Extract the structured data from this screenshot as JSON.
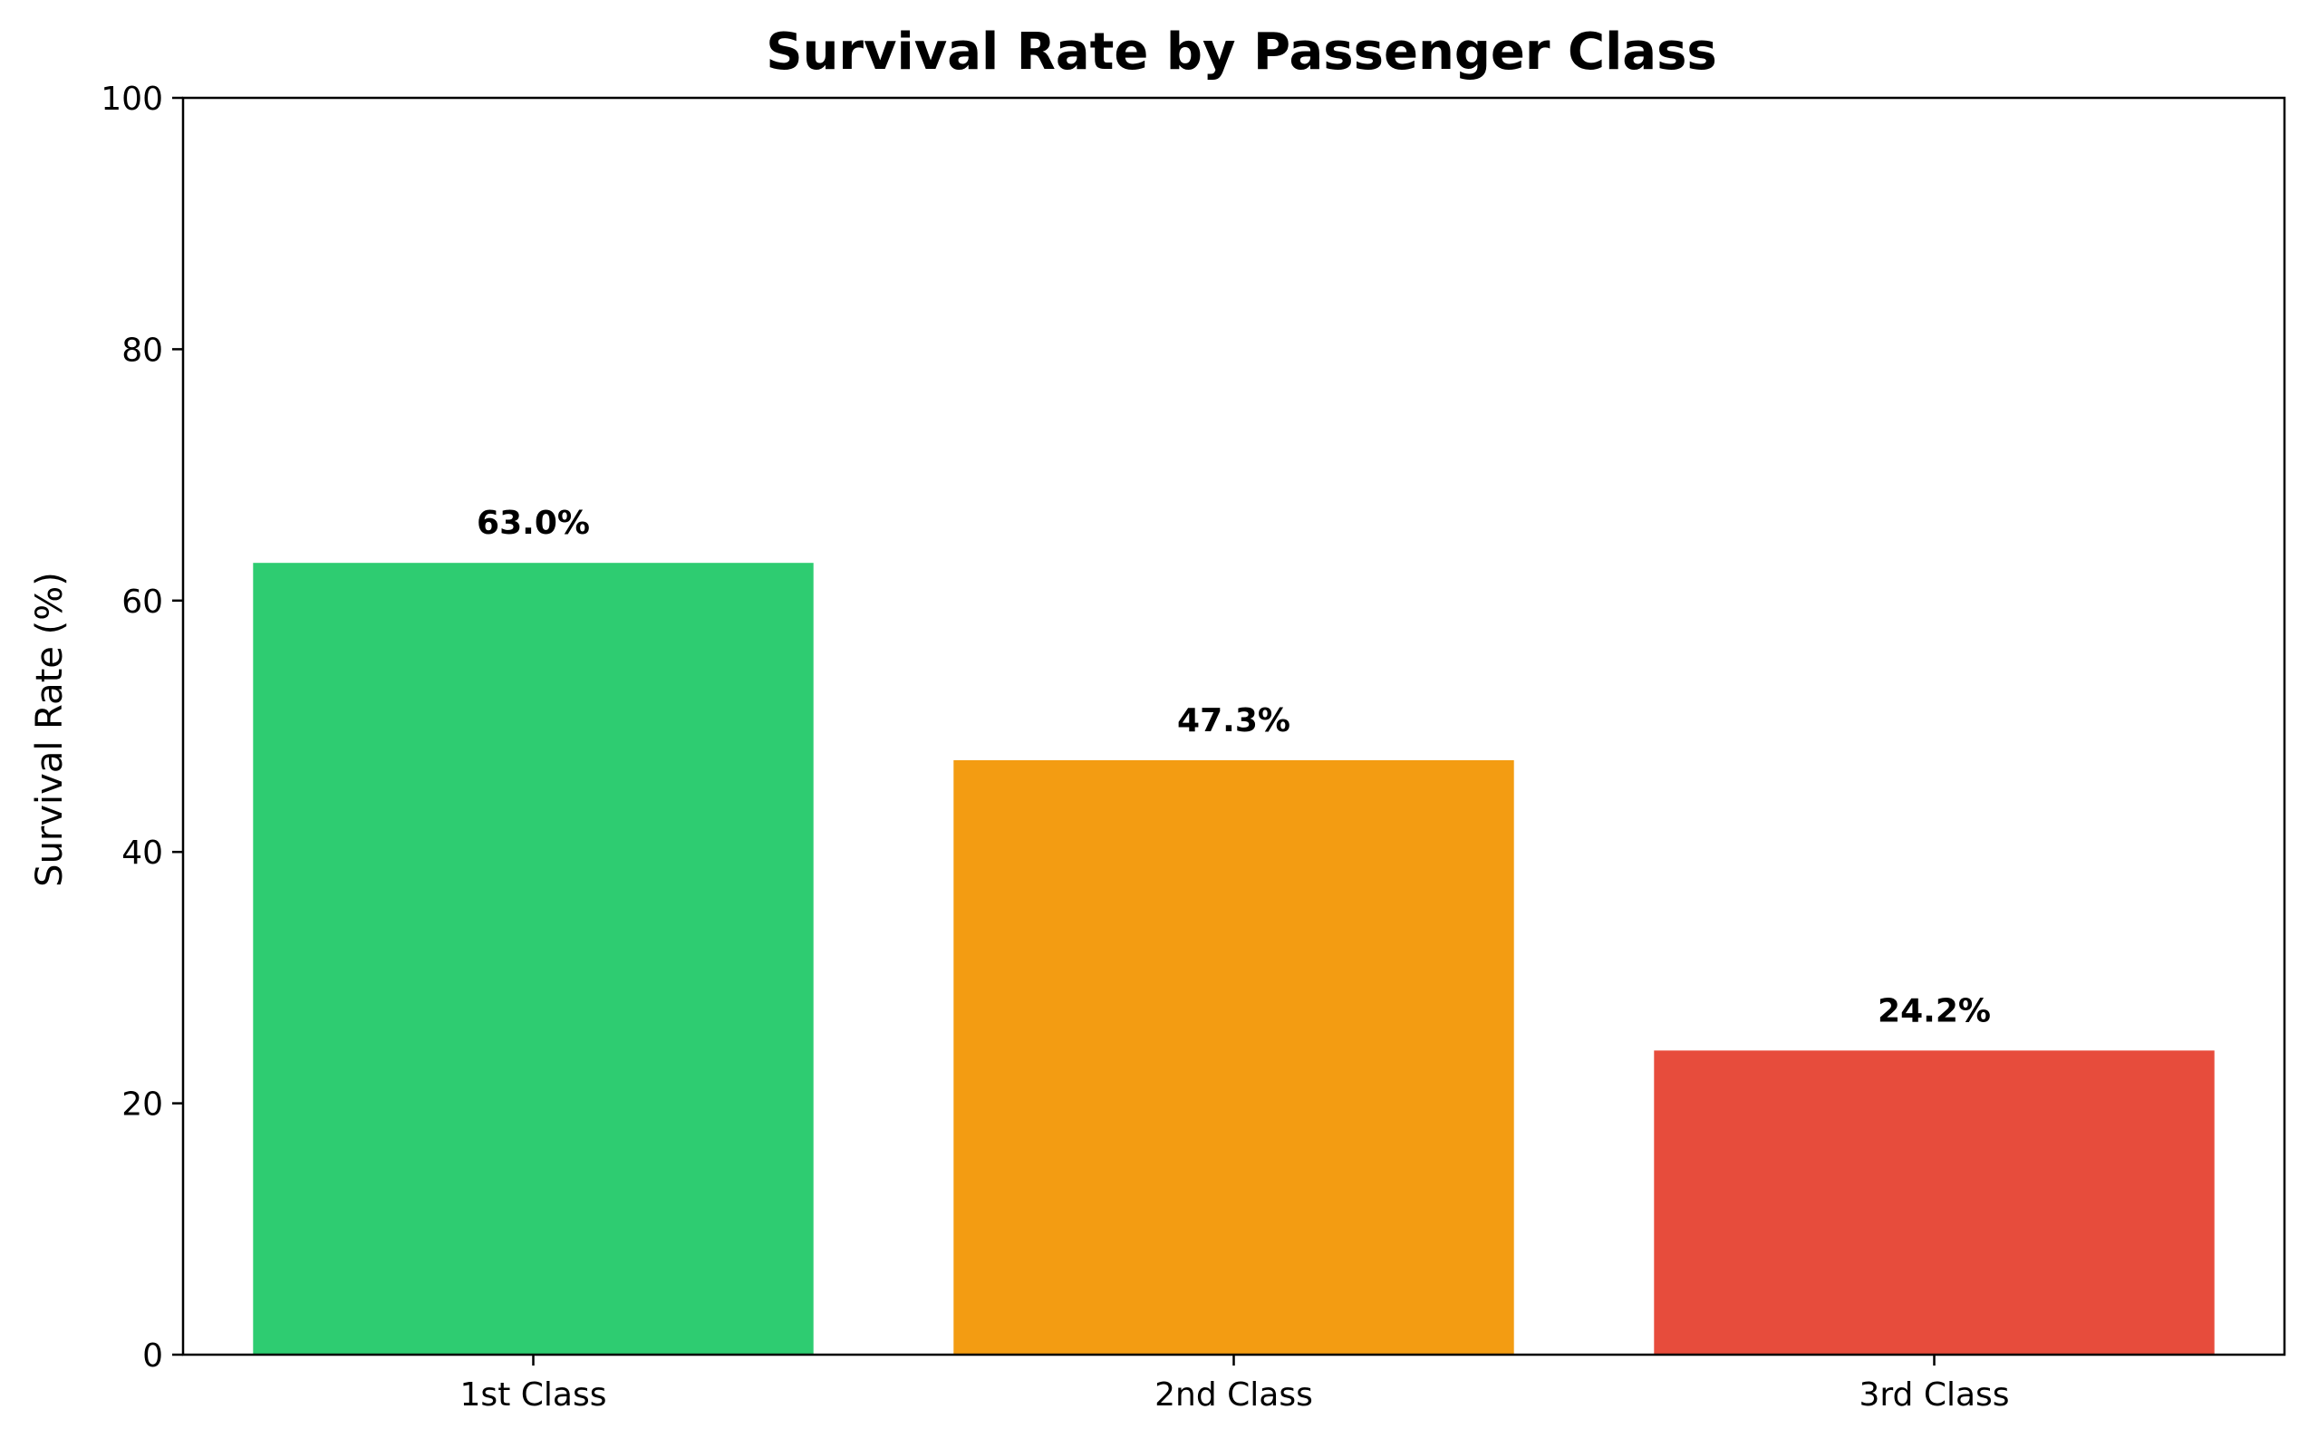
{
  "chart_data": {
    "type": "bar",
    "title": "Survival Rate by Passenger Class",
    "xlabel": "",
    "ylabel": "Survival Rate (%)",
    "categories": [
      "1st Class",
      "2nd Class",
      "3rd Class"
    ],
    "values": [
      63.0,
      47.3,
      24.2
    ],
    "data_labels": [
      "63.0%",
      "47.3%",
      "24.2%"
    ],
    "colors": [
      "#2ecc71",
      "#f39c12",
      "#e74c3c"
    ],
    "ylim": [
      0,
      100
    ],
    "yticks": [
      0,
      20,
      40,
      60,
      80,
      100
    ],
    "ytick_labels": [
      "0",
      "20",
      "40",
      "60",
      "80",
      "100"
    ],
    "grid": false,
    "legend": "none"
  }
}
